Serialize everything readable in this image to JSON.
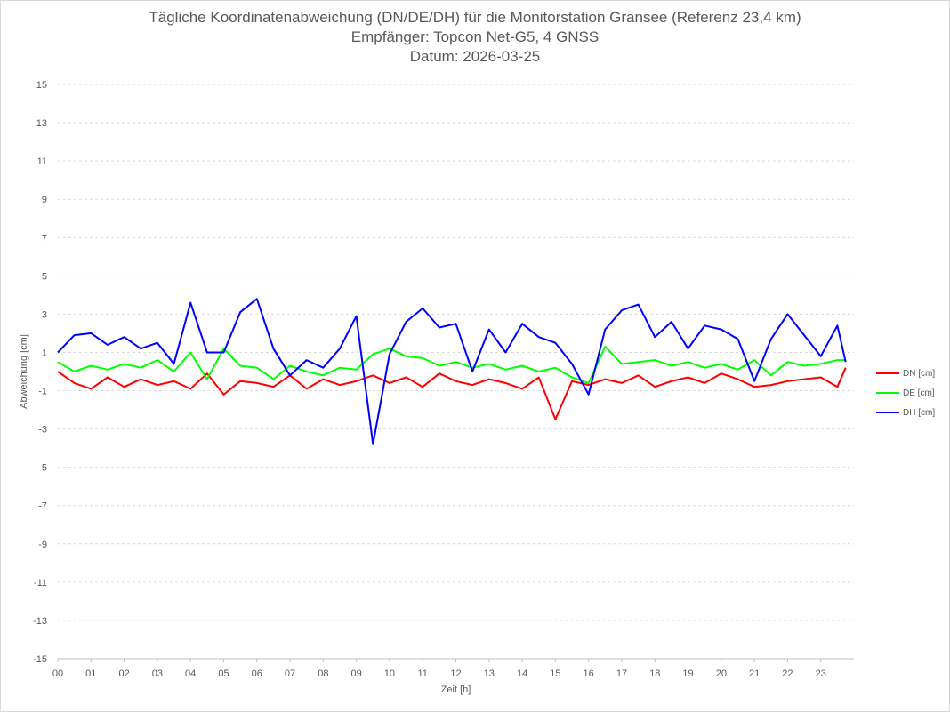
{
  "chart_data": {
    "type": "line",
    "title": "Tägliche Koordinatenabweichung (DN/DE/DH) für die Monitorstation Gransee (Referenz 23,4 km)",
    "subtitle1": "Empfänger: Topcon Net-G5, 4 GNSS",
    "subtitle2": "Datum: 2026-03-25",
    "xlabel": "Zeit [h]",
    "ylabel": "Abweichung [cm]",
    "xlim": [
      0,
      24
    ],
    "ylim": [
      -15,
      15
    ],
    "x_ticks": [
      "00",
      "01",
      "02",
      "03",
      "04",
      "05",
      "06",
      "07",
      "08",
      "09",
      "10",
      "11",
      "12",
      "13",
      "14",
      "15",
      "16",
      "17",
      "18",
      "19",
      "20",
      "21",
      "22",
      "23"
    ],
    "y_ticks": [
      15,
      13,
      11,
      9,
      7,
      5,
      3,
      1,
      -1,
      -3,
      -5,
      -7,
      -9,
      -11,
      -13,
      -15
    ],
    "grid": "horizontal-dashed",
    "legend": "right",
    "x": [
      0.0,
      0.5,
      1.0,
      1.5,
      2.0,
      2.5,
      3.0,
      3.5,
      4.0,
      4.5,
      5.0,
      5.5,
      6.0,
      6.5,
      7.0,
      7.5,
      8.0,
      8.5,
      9.0,
      9.5,
      10.0,
      10.5,
      11.0,
      11.5,
      12.0,
      12.5,
      13.0,
      13.5,
      14.0,
      14.5,
      15.0,
      15.5,
      16.0,
      16.5,
      17.0,
      17.5,
      18.0,
      18.5,
      19.0,
      19.5,
      20.0,
      20.5,
      21.0,
      21.5,
      22.0,
      22.5,
      23.0,
      23.5,
      23.75
    ],
    "series": [
      {
        "name": "DN [cm]",
        "color": "#ff0000",
        "values": [
          0.0,
          -0.6,
          -0.9,
          -0.3,
          -0.8,
          -0.4,
          -0.7,
          -0.5,
          -0.9,
          -0.1,
          -1.2,
          -0.5,
          -0.6,
          -0.8,
          -0.2,
          -0.9,
          -0.4,
          -0.7,
          -0.5,
          -0.2,
          -0.6,
          -0.3,
          -0.8,
          -0.1,
          -0.5,
          -0.7,
          -0.4,
          -0.6,
          -0.9,
          -0.3,
          -2.5,
          -0.5,
          -0.7,
          -0.4,
          -0.6,
          -0.2,
          -0.8,
          -0.5,
          -0.3,
          -0.6,
          -0.1,
          -0.4,
          -0.8,
          -0.7,
          -0.5,
          -0.4,
          -0.3,
          -0.8,
          0.2
        ]
      },
      {
        "name": "DE [cm]",
        "color": "#00ff00",
        "values": [
          0.5,
          0.0,
          0.3,
          0.1,
          0.4,
          0.2,
          0.6,
          0.0,
          1.0,
          -0.4,
          1.2,
          0.3,
          0.2,
          -0.4,
          0.3,
          0.0,
          -0.2,
          0.2,
          0.1,
          0.9,
          1.2,
          0.8,
          0.7,
          0.3,
          0.5,
          0.2,
          0.4,
          0.1,
          0.3,
          0.0,
          0.2,
          -0.3,
          -0.6,
          1.3,
          0.4,
          0.5,
          0.6,
          0.3,
          0.5,
          0.2,
          0.4,
          0.1,
          0.6,
          -0.2,
          0.5,
          0.3,
          0.4,
          0.6,
          0.6
        ]
      },
      {
        "name": "DH [cm]",
        "color": "#0000ff",
        "values": [
          1.0,
          1.9,
          2.0,
          1.4,
          1.8,
          1.2,
          1.5,
          0.4,
          3.6,
          1.0,
          1.0,
          3.1,
          3.8,
          1.2,
          -0.2,
          0.6,
          0.2,
          1.2,
          2.9,
          -3.8,
          0.9,
          2.6,
          3.3,
          2.3,
          2.5,
          0.0,
          2.2,
          1.0,
          2.5,
          1.8,
          1.5,
          0.4,
          -1.2,
          2.2,
          3.2,
          3.5,
          1.8,
          2.6,
          1.2,
          2.4,
          2.2,
          1.7,
          -0.5,
          1.7,
          3.0,
          1.9,
          0.8,
          2.4,
          0.5
        ]
      }
    ]
  }
}
